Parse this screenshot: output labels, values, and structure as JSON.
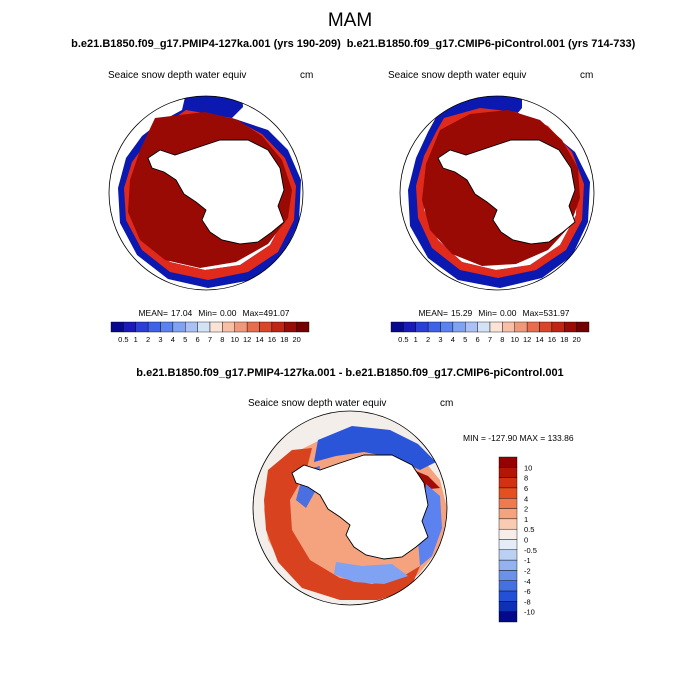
{
  "chart_data": {
    "type": "heatmap",
    "title": "MAM",
    "panels": [
      {
        "id": "case",
        "case_title": "b.e21.B1850.f09_g17.PMIP4-127ka.001 (yrs 190-209)",
        "variable": "Seaice snow depth water equiv",
        "units": "cm",
        "stats": {
          "mean_label": "MEAN=",
          "mean": "17.04",
          "min_label": "Min=",
          "min": "0.00",
          "max_label": "Max=",
          "max": "491.07"
        },
        "colorbar_labels": [
          "0.5",
          "1",
          "2",
          "3",
          "4",
          "5",
          "6",
          "7",
          "8",
          "10",
          "12",
          "14",
          "16",
          "18",
          "20"
        ]
      },
      {
        "id": "control",
        "case_title": "b.e21.B1850.f09_g17.CMIP6-piControl.001 (yrs 714-733)",
        "variable": "Seaice snow depth water equiv",
        "units": "cm",
        "stats": {
          "mean_label": "MEAN=",
          "mean": "15.29",
          "min_label": "Min=",
          "min": "0.00",
          "max_label": "Max=",
          "max": "531.97"
        },
        "colorbar_labels": [
          "0.5",
          "1",
          "2",
          "3",
          "4",
          "5",
          "6",
          "7",
          "8",
          "10",
          "12",
          "14",
          "16",
          "18",
          "20"
        ]
      },
      {
        "id": "diff",
        "case_title": "b.e21.B1850.f09_g17.PMIP4-127ka.001 - b.e21.B1850.f09_g17.CMIP6-piControl.001",
        "variable": "Seaice snow depth water equiv",
        "units": "cm",
        "minmax": "MIN = -127.90 MAX = 133.86",
        "colorbar_labels": [
          "10",
          "8",
          "6",
          "4",
          "2",
          "1",
          "0.5",
          "0",
          "-0.5",
          "-1",
          "-2",
          "-4",
          "-6",
          "-8",
          "-10"
        ]
      }
    ],
    "palette_sequential": [
      "#08088f",
      "#1a1ab8",
      "#2b3fd6",
      "#3f62e6",
      "#5c82ef",
      "#7fa2f2",
      "#a9c1f4",
      "#d4e2f5",
      "#fbe3d6",
      "#f6bfa6",
      "#f0987a",
      "#e86d4e",
      "#d9472a",
      "#bd2514",
      "#970c06",
      "#740000"
    ],
    "palette_diverging": [
      "#960000",
      "#b51505",
      "#d03212",
      "#e4501f",
      "#f07a4f",
      "#f5a37f",
      "#f9cbb3",
      "#f7eee9",
      "#e4ecf8",
      "#bcd0f3",
      "#93b2ef",
      "#6c91ea",
      "#4470e3",
      "#2250d6",
      "#0d30b4",
      "#020a8a"
    ]
  }
}
